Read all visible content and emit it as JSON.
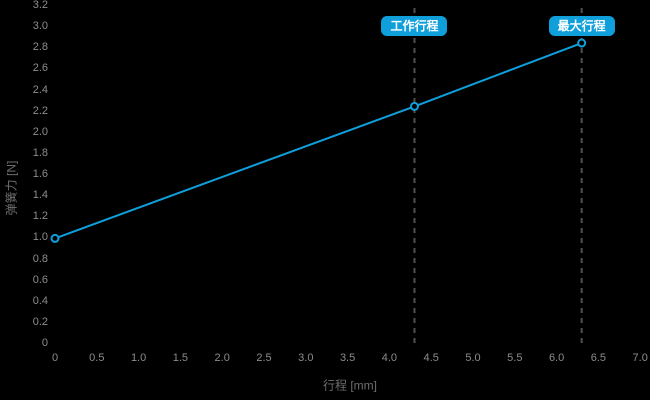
{
  "chart_data": {
    "type": "line",
    "title": "",
    "xlabel": "行程 [mm]",
    "ylabel": "弹簧力 [N]",
    "xlim": [
      0,
      7.0
    ],
    "ylim": [
      0,
      3.2
    ],
    "grid": false,
    "legend": "none",
    "x_ticks": [
      0,
      0.5,
      1.0,
      1.5,
      2.0,
      2.5,
      3.0,
      3.5,
      4.0,
      4.5,
      5.0,
      5.5,
      6.0,
      6.5,
      7.0
    ],
    "y_ticks": [
      0,
      0.2,
      0.4,
      0.6,
      0.8,
      1.0,
      1.2,
      1.4,
      1.6,
      1.8,
      2.0,
      2.2,
      2.4,
      2.6,
      2.8,
      3.0,
      3.2
    ],
    "series": [
      {
        "name": "spring-force-line",
        "color": "#0fa0dc",
        "marker": "circle",
        "points": [
          [
            0,
            1.0
          ],
          [
            4.3,
            2.25
          ],
          [
            6.3,
            2.85
          ]
        ]
      }
    ],
    "annotations": [
      {
        "label": "工作行程",
        "x": 4.3,
        "y_at_line": 2.25
      },
      {
        "label": "最大行程",
        "x": 6.3,
        "y_at_line": 2.85
      }
    ]
  },
  "colors": {
    "background": "#000000",
    "accent": "#0fa0dc",
    "tick_label": "#8c8c8c",
    "axis_title": "#6e6e6e",
    "dashed_line": "#515151",
    "marker_fill": "#000000",
    "annotation_text": "#ffffff"
  }
}
